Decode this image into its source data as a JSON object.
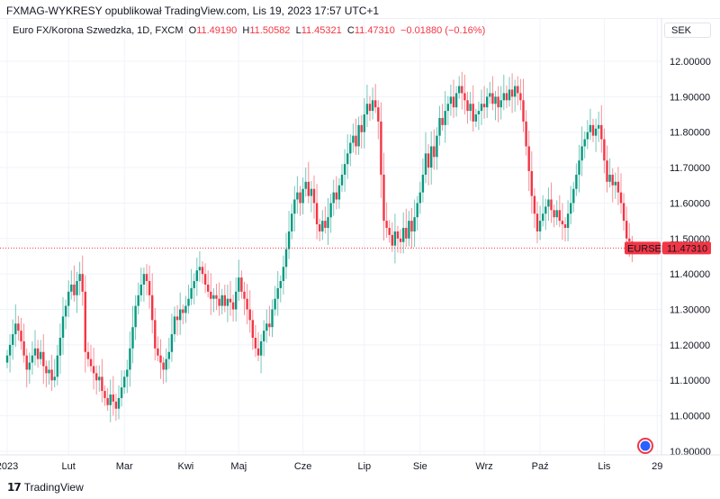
{
  "header": {
    "published": "FXMAG-WYKRESY opublikował TradingView.com, Lis 19, 2023 17:57 UTC+1"
  },
  "legend": {
    "symbol": "Euro FX/Korona Szwedzka, 1D, FXCM",
    "o_label": "O",
    "o": "11.49190",
    "h_label": "H",
    "h": "11.50582",
    "l_label": "L",
    "l": "11.45321",
    "c_label": "C",
    "c": "11.47310",
    "change": "−0.01880 (−0.16%)"
  },
  "currency_button": "SEK",
  "price_label": {
    "ticker": "EURSEK",
    "value": "11.47310"
  },
  "footer": {
    "logo_icon": "tradingview-logo-icon",
    "brand": "TradingView"
  },
  "colors": {
    "up": "#089981",
    "down": "#f23645",
    "grid": "#f0f3fa",
    "last_price": "#f23645"
  },
  "chart_data": {
    "type": "candlestick",
    "symbol": "EURSEK",
    "interval": "1D",
    "ylim": [
      10.88,
      12.01
    ],
    "y_ticks": [
      "12.00000",
      "11.90000",
      "11.80000",
      "11.70000",
      "11.60000",
      "11.50000",
      "11.40000",
      "11.30000",
      "11.20000",
      "11.10000",
      "11.00000",
      "10.90000"
    ],
    "x_ticks": [
      {
        "label": "2023",
        "index": 0
      },
      {
        "label": "Lut",
        "index": 22
      },
      {
        "label": "Mar",
        "index": 42
      },
      {
        "label": "Kwi",
        "index": 64
      },
      {
        "label": "Maj",
        "index": 83
      },
      {
        "label": "Cze",
        "index": 106
      },
      {
        "label": "Lip",
        "index": 128
      },
      {
        "label": "Sie",
        "index": 148
      },
      {
        "label": "Wrz",
        "index": 171
      },
      {
        "label": "Paź",
        "index": 191
      },
      {
        "label": "Lis",
        "index": 214
      },
      {
        "label": "29",
        "index": 233
      }
    ],
    "grid": true,
    "last_price": 11.4731,
    "last_open": 11.4919,
    "closes": [
      11.17,
      11.2,
      11.23,
      11.26,
      11.24,
      11.21,
      11.17,
      11.13,
      11.15,
      11.17,
      11.19,
      11.16,
      11.18,
      11.14,
      11.12,
      11.13,
      11.1,
      11.11,
      11.17,
      11.22,
      11.28,
      11.31,
      11.35,
      11.37,
      11.34,
      11.38,
      11.4,
      11.35,
      11.18,
      11.16,
      11.14,
      11.12,
      11.1,
      11.11,
      11.07,
      11.05,
      11.03,
      11.06,
      11.04,
      11.02,
      11.05,
      11.08,
      11.11,
      11.13,
      11.19,
      11.25,
      11.31,
      11.34,
      11.37,
      11.4,
      11.38,
      11.34,
      11.27,
      11.19,
      11.17,
      11.15,
      11.13,
      11.16,
      11.18,
      11.23,
      11.28,
      11.27,
      11.3,
      11.29,
      11.31,
      11.33,
      11.36,
      11.38,
      11.41,
      11.42,
      11.4,
      11.37,
      11.35,
      11.33,
      11.34,
      11.33,
      11.31,
      11.34,
      11.31,
      11.33,
      11.32,
      11.3,
      11.35,
      11.39,
      11.35,
      11.33,
      11.3,
      11.27,
      11.22,
      11.19,
      11.17,
      11.21,
      11.24,
      11.26,
      11.25,
      11.3,
      11.33,
      11.36,
      11.38,
      11.42,
      11.47,
      11.52,
      11.57,
      11.61,
      11.63,
      11.6,
      11.64,
      11.66,
      11.62,
      11.64,
      11.6,
      11.54,
      11.52,
      11.55,
      11.53,
      11.56,
      11.6,
      11.63,
      11.61,
      11.65,
      11.68,
      11.71,
      11.74,
      11.77,
      11.79,
      11.76,
      11.82,
      11.8,
      11.85,
      11.88,
      11.86,
      11.89,
      11.87,
      11.83,
      11.68,
      11.55,
      11.53,
      11.51,
      11.48,
      11.52,
      11.5,
      11.49,
      11.53,
      11.5,
      11.55,
      11.52,
      11.56,
      11.6,
      11.63,
      11.68,
      11.74,
      11.7,
      11.76,
      11.73,
      11.79,
      11.84,
      11.82,
      11.86,
      11.88,
      11.9,
      11.87,
      11.91,
      11.93,
      11.91,
      11.89,
      11.86,
      11.88,
      11.83,
      11.85,
      11.86,
      11.88,
      11.87,
      11.9,
      11.91,
      11.88,
      11.9,
      11.87,
      11.89,
      11.91,
      11.89,
      11.92,
      11.9,
      11.93,
      11.91,
      11.89,
      11.83,
      11.76,
      11.69,
      11.62,
      11.57,
      11.52,
      11.55,
      11.57,
      11.59,
      11.61,
      11.58,
      11.56,
      11.58,
      11.55,
      11.54,
      11.53,
      11.57,
      11.6,
      11.64,
      11.68,
      11.72,
      11.76,
      11.78,
      11.8,
      11.82,
      11.79,
      11.81,
      11.82,
      11.78,
      11.72,
      11.66,
      11.68,
      11.65,
      11.66,
      11.63,
      11.6,
      11.55,
      11.5,
      11.4919,
      11.4731
    ]
  }
}
